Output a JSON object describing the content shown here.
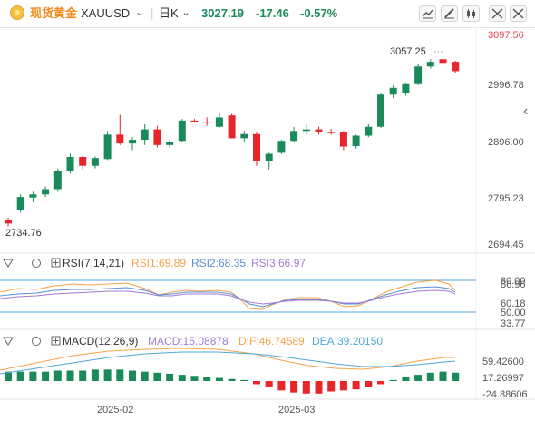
{
  "header": {
    "name": "现货黄金",
    "symbol": "XAUUSD",
    "symbol_arrow": "⌄",
    "period": "日K",
    "period_arrow": "⌄",
    "price": "3027.19",
    "change": "-17.46",
    "change_pct": "-0.57%",
    "tools": [
      "trend-line-tool",
      "pen-tool",
      "indicator-tool",
      "fullscreen-tool",
      "settings-tool"
    ]
  },
  "colors": {
    "up": "#1a8a5a",
    "down": "#e8252b",
    "price_tag": "#e8414d",
    "rsi1": "#f5a34a",
    "rsi2": "#5a8fd6",
    "rsi3": "#a37cd4",
    "dif": "#f5a34a",
    "dea": "#4fa8d8"
  },
  "main": {
    "high_label": "3057.25",
    "low_label": "2734.76",
    "price_tag": "3097.56",
    "yticks": [
      "2996.78",
      "2896.00",
      "2795.23",
      "2694.45"
    ],
    "collapse_arrow": "‹"
  },
  "rsi": {
    "title": "RSI(7,14,21)",
    "rsi1": "RSI1:69.89",
    "rsi2": "RSI2:68.35",
    "rsi3": "RSI3:66.97",
    "levels": [
      "80.00",
      "86.96",
      "60.18",
      "50.00",
      "33.77"
    ]
  },
  "macd": {
    "title": "MACD(12,26,9)",
    "macd": "MACD:15.08878",
    "dif": "DIF:46.74589",
    "dea": "DEA:39.20150",
    "levels": [
      "59.42600",
      "17.26997",
      "-24.88606"
    ]
  },
  "xaxis": [
    "2025-02",
    "2025-03"
  ],
  "chart_data": {
    "type": "candlestick",
    "ohlc": [
      [
        2740,
        2745,
        2728,
        2734
      ],
      [
        2760,
        2790,
        2755,
        2785
      ],
      [
        2784,
        2795,
        2775,
        2790
      ],
      [
        2790,
        2805,
        2785,
        2800
      ],
      [
        2800,
        2840,
        2795,
        2835
      ],
      [
        2835,
        2868,
        2830,
        2862
      ],
      [
        2862,
        2865,
        2838,
        2845
      ],
      [
        2845,
        2863,
        2840,
        2860
      ],
      [
        2858,
        2912,
        2856,
        2905
      ],
      [
        2905,
        2943,
        2885,
        2888
      ],
      [
        2888,
        2900,
        2875,
        2895
      ],
      [
        2895,
        2925,
        2885,
        2915
      ],
      [
        2915,
        2922,
        2880,
        2885
      ],
      [
        2885,
        2895,
        2880,
        2890
      ],
      [
        2893,
        2935,
        2890,
        2932
      ],
      [
        2932,
        2935,
        2928,
        2930
      ],
      [
        2930,
        2938,
        2922,
        2928
      ],
      [
        2920,
        2946,
        2918,
        2938
      ],
      [
        2942,
        2945,
        2898,
        2898
      ],
      [
        2898,
        2912,
        2890,
        2906
      ],
      [
        2906,
        2910,
        2845,
        2855
      ],
      [
        2855,
        2870,
        2838,
        2868
      ],
      [
        2870,
        2895,
        2868,
        2893
      ],
      [
        2893,
        2920,
        2890,
        2912
      ],
      [
        2912,
        2925,
        2905,
        2915
      ],
      [
        2915,
        2920,
        2905,
        2910
      ],
      [
        2910,
        2916,
        2905,
        2909
      ],
      [
        2910,
        2912,
        2875,
        2882
      ],
      [
        2883,
        2905,
        2878,
        2903
      ],
      [
        2903,
        2925,
        2900,
        2920
      ],
      [
        2920,
        2985,
        2918,
        2982
      ],
      [
        2982,
        3000,
        2975,
        2995
      ],
      [
        2985,
        3005,
        2980,
        3002
      ],
      [
        3002,
        3040,
        3000,
        3036
      ],
      [
        3036,
        3050,
        3032,
        3045
      ],
      [
        3050,
        3057,
        3025,
        3043
      ],
      [
        3045,
        3047,
        3024,
        3027
      ]
    ]
  }
}
